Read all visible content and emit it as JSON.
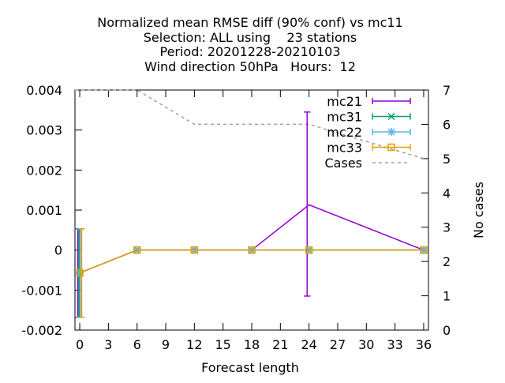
{
  "chart_data": {
    "type": "line",
    "title_lines": [
      "Normalized mean RMSE diff (90% conf) vs mc11",
      "Selection: ALL using    23 stations",
      "Period: 20201228-20210103",
      "Wind direction 50hPa   Hours:  12"
    ],
    "xlabel": "Forecast length",
    "ylabel": "",
    "y2label": "No cases",
    "xlim": [
      -0.5,
      36.5
    ],
    "ylim": [
      -0.002,
      0.004
    ],
    "y2lim": [
      0,
      7
    ],
    "xticks": [
      0,
      3,
      6,
      9,
      12,
      15,
      18,
      21,
      24,
      27,
      30,
      33,
      36
    ],
    "yticks": [
      -0.002,
      -0.001,
      0,
      0.001,
      0.002,
      0.003,
      0.004
    ],
    "ytick_labels": [
      "-0.002",
      "-0.001",
      "0",
      "0.001",
      "0.002",
      "0.003",
      "0.004"
    ],
    "y2ticks": [
      0,
      1,
      2,
      3,
      4,
      5,
      6,
      7
    ],
    "grid": false,
    "legend_position": "top-right",
    "series": [
      {
        "name": "mc21",
        "color": "#9400d3",
        "marker": "bar",
        "x": [
          0,
          6,
          12,
          18,
          24,
          36
        ],
        "y": [
          -0.00057,
          0,
          0,
          0,
          0.00113,
          0
        ],
        "err_low": [
          -0.00168,
          0,
          0,
          0,
          -0.00115,
          0
        ],
        "err_high": [
          0.00053,
          0,
          0,
          0,
          0.00345,
          0
        ],
        "x_offset": -0.2
      },
      {
        "name": "mc31",
        "color": "#009e73",
        "marker": "cross",
        "x": [
          0,
          6,
          12,
          18,
          24,
          36
        ],
        "y": [
          -0.00057,
          0,
          0,
          0,
          0,
          0
        ],
        "err_low": [
          -0.00168,
          0,
          0,
          0,
          0,
          0
        ],
        "err_high": [
          0.00053,
          0,
          0,
          0,
          0,
          0
        ],
        "x_offset": -0.07
      },
      {
        "name": "mc22",
        "color": "#56b4e9",
        "marker": "star",
        "x": [
          0,
          6,
          12,
          18,
          24,
          36
        ],
        "y": [
          -0.00057,
          0,
          0,
          0,
          0,
          0
        ],
        "err_low": [
          -0.00168,
          0,
          0,
          0,
          0,
          0
        ],
        "err_high": [
          0.00053,
          0,
          0,
          0,
          0,
          0
        ],
        "x_offset": 0.07
      },
      {
        "name": "mc33",
        "color": "#e69f00",
        "marker": "square",
        "x": [
          0,
          6,
          12,
          18,
          24,
          36
        ],
        "y": [
          -0.00057,
          0,
          0,
          0,
          0,
          0
        ],
        "err_low": [
          -0.00168,
          0,
          0,
          0,
          0,
          0
        ],
        "err_high": [
          0.00053,
          0,
          0,
          0,
          0,
          0
        ],
        "x_offset": 0.2
      }
    ],
    "cases": {
      "name": "Cases",
      "color": "#a0a0a0",
      "axis": "y2",
      "x": [
        -0.5,
        6,
        12,
        18,
        24,
        36
      ],
      "y": [
        7,
        7,
        6,
        6,
        6,
        5
      ]
    }
  }
}
